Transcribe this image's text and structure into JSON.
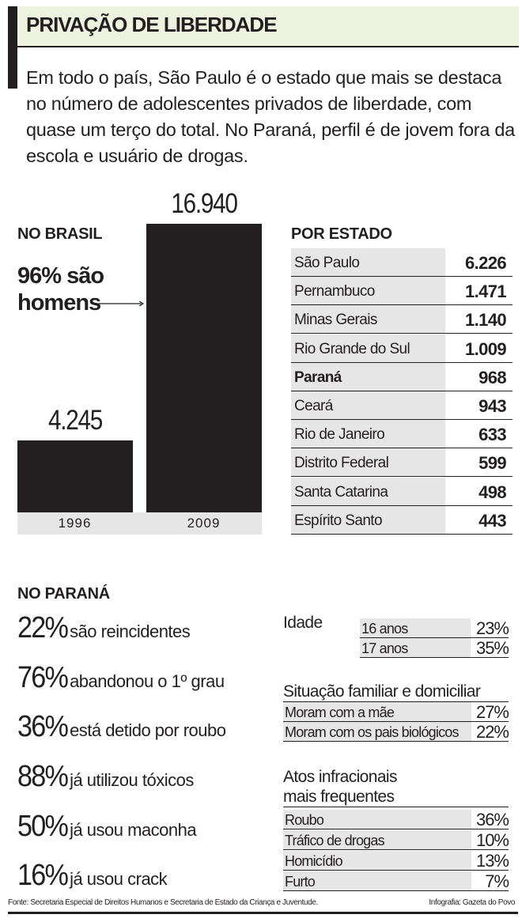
{
  "header": {
    "title": "PRIVAÇÃO DE LIBERDADE",
    "intro": "Em todo o país, São Paulo é o estado que mais se destaca no número de adolescentes privados de liberdade, com quase um terço do total. No Paraná, perfil é de jovem fora da escola e usuário de drogas."
  },
  "brasil": {
    "title": "NO BRASIL",
    "note_line1": "96% são",
    "note_line2": "homens"
  },
  "chart_data": {
    "type": "bar",
    "categories": [
      "1996",
      "2009"
    ],
    "values": [
      4245,
      16940
    ],
    "value_labels": [
      "4.245",
      "16.940"
    ],
    "title": "NO BRASIL",
    "xlabel": "",
    "ylabel": "",
    "ylim": [
      0,
      16940
    ],
    "grid": false,
    "bar_color": "#231f20"
  },
  "por_estado": {
    "title": "POR ESTADO",
    "rows": [
      {
        "state": "São Paulo",
        "value": "6.226"
      },
      {
        "state": "Pernambuco",
        "value": "1.471"
      },
      {
        "state": "Minas Gerais",
        "value": "1.140"
      },
      {
        "state": "Rio Grande do Sul",
        "value": "1.009"
      },
      {
        "state": "Paraná",
        "value": "968",
        "highlight": true
      },
      {
        "state": "Ceará",
        "value": "943"
      },
      {
        "state": "Rio de Janeiro",
        "value": "633"
      },
      {
        "state": "Distrito Federal",
        "value": "599"
      },
      {
        "state": "Santa Catarina",
        "value": "498"
      },
      {
        "state": "Espírito Santo",
        "value": "443"
      }
    ]
  },
  "parana": {
    "title": "NO PARANÁ",
    "stats": [
      {
        "value": "22%",
        "text": "são reincidentes"
      },
      {
        "value": "76%",
        "text": "abandonou o 1º grau"
      },
      {
        "value": "36%",
        "text": "está detido por roubo"
      },
      {
        "value": "88%",
        "text": "já utilizou tóxicos"
      },
      {
        "value": "50%",
        "text": "já usou maconha"
      },
      {
        "value": "16%",
        "text": "já usou crack"
      }
    ],
    "idade": {
      "title": "Idade",
      "rows": [
        {
          "label": "16 anos",
          "value": "23%"
        },
        {
          "label": "17 anos",
          "value": "35%"
        }
      ]
    },
    "familia": {
      "title": "Situação familiar e domiciliar",
      "rows": [
        {
          "label": "Moram com a mãe",
          "value": "27%"
        },
        {
          "label": "Moram com os pais biológicos",
          "value": "22%"
        }
      ]
    },
    "atos": {
      "title_line1": "Atos infracionais",
      "title_line2": "mais frequentes",
      "rows": [
        {
          "label": "Roubo",
          "value": "36%"
        },
        {
          "label": "Tráfico de drogas",
          "value": "10%"
        },
        {
          "label": "Homicídio",
          "value": "13%"
        },
        {
          "label": "Furto",
          "value": "7%"
        }
      ]
    }
  },
  "footer": {
    "source": "Fonte: Secretaria Especial de Direitos Humanos e Secretaria de Estado da Criança e Juventude.",
    "credit": "Infografia: Gazeta do Povo"
  },
  "colors": {
    "title_band": "#edf3df",
    "cell_gray": "#e6e6e6",
    "ink": "#231f20"
  }
}
